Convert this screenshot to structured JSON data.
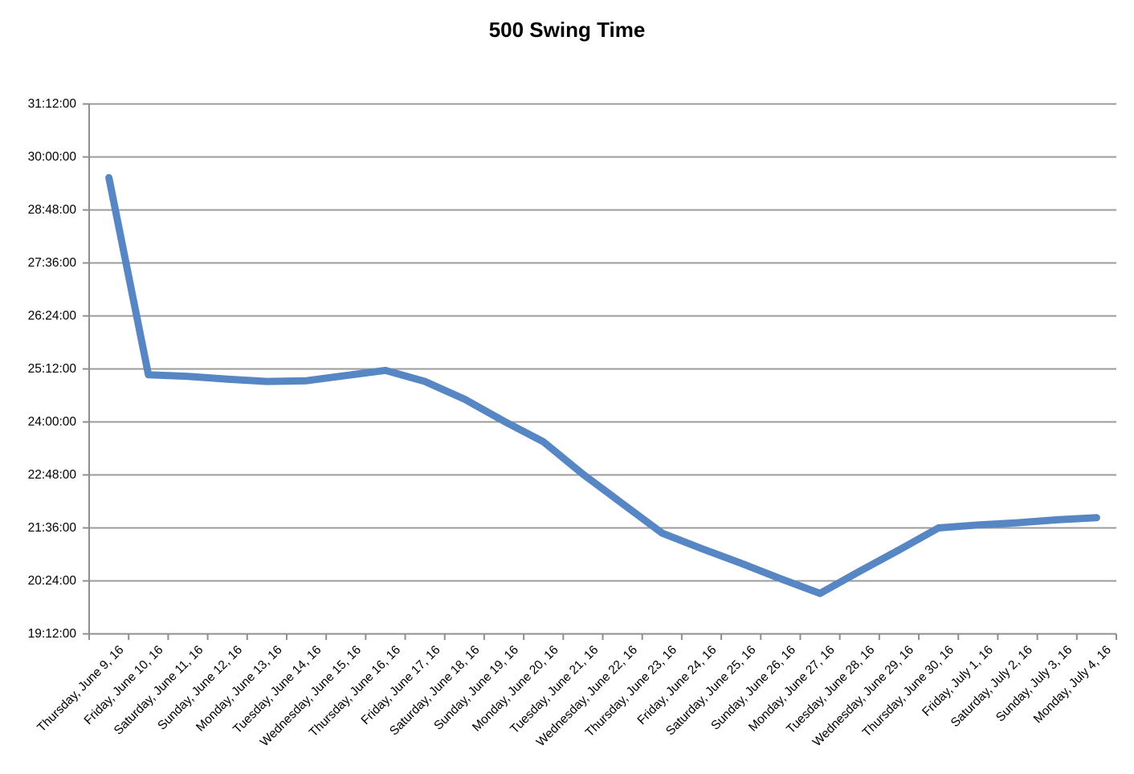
{
  "page": {
    "background": "#FFFFFF"
  },
  "chart_data": {
    "type": "line",
    "title": "500 Swing Time",
    "xlabel": "",
    "ylabel": "",
    "legend": "none",
    "grid": "horizontal-only",
    "categories": [
      "Thursday, June 9, 16",
      "Friday, June 10, 16",
      "Saturday, June 11, 16",
      "Sunday, June 12, 16",
      "Monday, June 13, 16",
      "Tuesday, June 14, 16",
      "Wednesday, June 15, 16",
      "Thursday, June 16, 16",
      "Friday, June 17, 16",
      "Saturday, June 18, 16",
      "Sunday, June 19, 16",
      "Monday, June 20, 16",
      "Tuesday, June 21, 16",
      "Wednesday, June 22, 16",
      "Thursday, June 23, 16",
      "Friday, June 24, 16",
      "Saturday, June 25, 16",
      "Sunday, June 26, 16",
      "Monday, June 27, 16",
      "Tuesday, June 28, 16",
      "Wednesday, June 29, 16",
      "Thursday, June 30, 16",
      "Friday, July 1, 16",
      "Saturday, July 2, 16",
      "Sunday, July 3, 16",
      "Monday, July 4, 16"
    ],
    "series": [
      {
        "name": "500 Swing Time",
        "values": [
          "29:32:00",
          "25:04:00",
          "25:02:00",
          "24:58:00",
          "24:55:00",
          "24:56:00",
          "25:03:00",
          "25:10:00",
          "24:55:00",
          "24:31:00",
          "24:01:00",
          "23:33:00",
          "22:49:00",
          "22:09:00",
          "21:29:00",
          "21:08:00",
          "20:48:00",
          "20:27:00",
          "20:07:00",
          "20:37:00",
          "21:06:00",
          "21:36:00",
          "21:40:00",
          "21:43:00",
          "21:47:00",
          "21:50:00"
        ]
      }
    ],
    "y_axis": {
      "min": "19:12:00",
      "max": "31:12:00",
      "tick_interval": "1:12:00",
      "tick_labels": [
        "19:12:00",
        "20:24:00",
        "21:36:00",
        "22:48:00",
        "24:00:00",
        "25:12:00",
        "26:24:00",
        "27:36:00",
        "28:48:00",
        "30:00:00",
        "31:12:00"
      ]
    },
    "colors": {
      "line": "#5687C4",
      "gridline": "#9B9B9B",
      "axis": "#8F8F8F",
      "tick": "#8F8F8F",
      "text": "#000000",
      "title": "#000000",
      "background": "#FFFFFF"
    }
  }
}
